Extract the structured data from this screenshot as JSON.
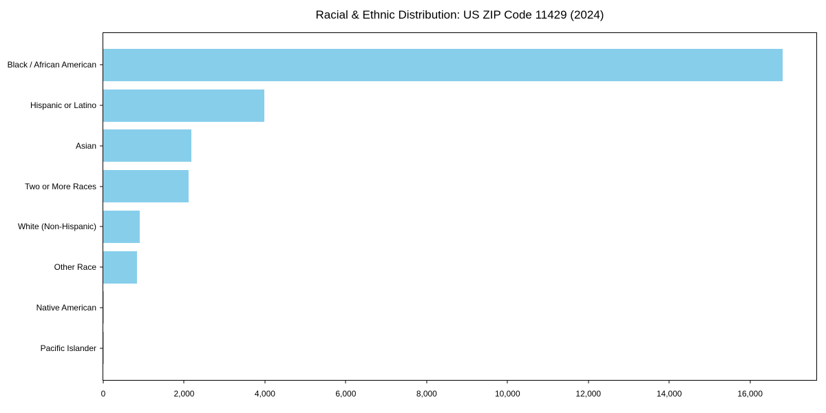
{
  "chart_data": {
    "type": "bar",
    "orientation": "horizontal",
    "title": "Racial & Ethnic Distribution: US ZIP Code 11429 (2024)",
    "categories": [
      "Black / African American",
      "Hispanic or Latino",
      "Asian",
      "Two or More Races",
      "White (Non-Hispanic)",
      "Other Race",
      "Native American",
      "Pacific Islander"
    ],
    "values": [
      16800,
      3980,
      2180,
      2110,
      900,
      830,
      25,
      8
    ],
    "bar_color": "#87CEEB",
    "xlabel": "",
    "ylabel": "",
    "xlim": [
      0,
      17640
    ],
    "x_ticks": [
      0,
      2000,
      4000,
      6000,
      8000,
      10000,
      12000,
      14000,
      16000
    ],
    "x_tick_labels": [
      "0",
      "2,000",
      "4,000",
      "6,000",
      "8,000",
      "10,000",
      "12,000",
      "14,000",
      "16,000"
    ],
    "grid": false,
    "legend": false,
    "background": "#ffffff",
    "text_color": "#000000"
  }
}
